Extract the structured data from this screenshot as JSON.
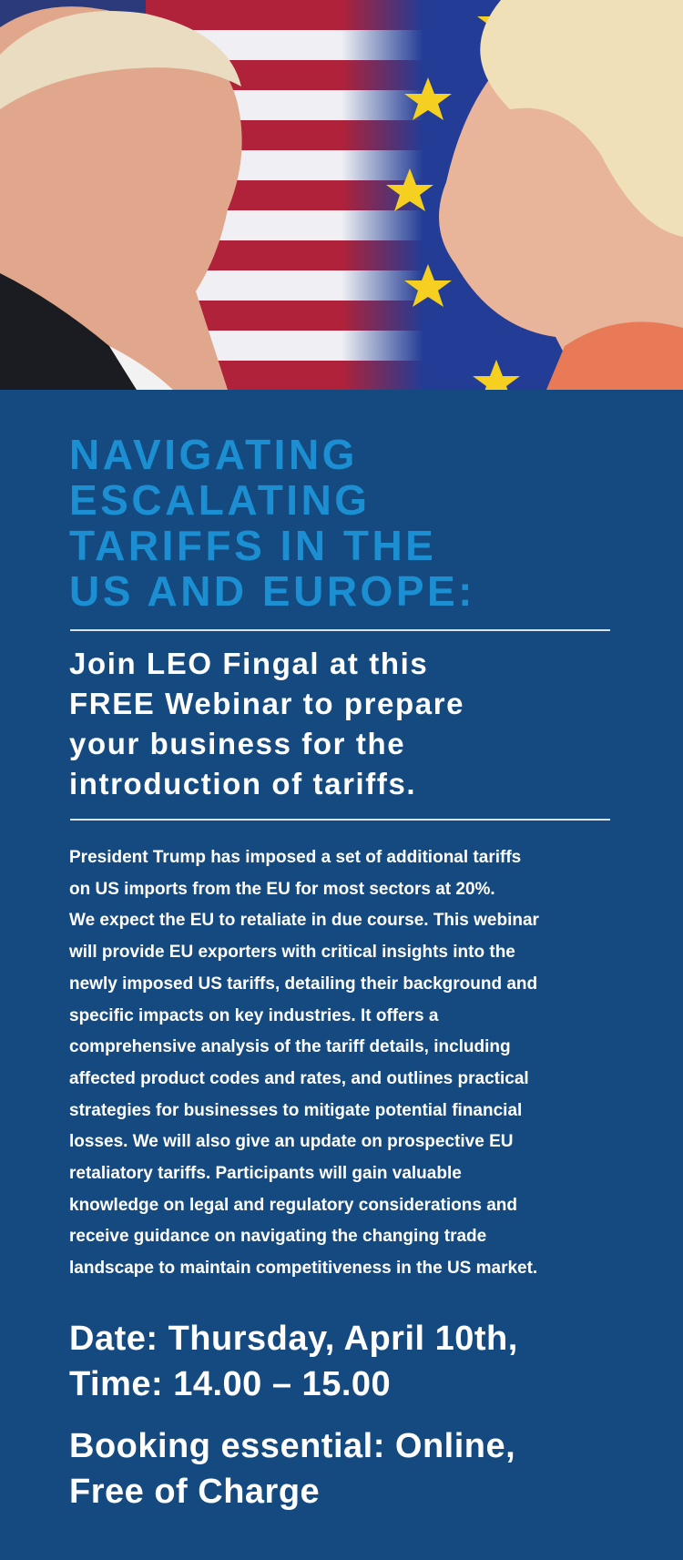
{
  "hero": {
    "image": "Donald Trump and Ursula von der Leyen facing each other in front of US and EU flags"
  },
  "title": [
    "NAVIGATING",
    "ESCALATING",
    "TARIFFS IN THE",
    "US AND EUROPE:"
  ],
  "subtitle": [
    "Join LEO Fingal at this",
    "FREE Webinar to prepare",
    "your business for the",
    "introduction of tariffs."
  ],
  "body": [
    "President Trump has imposed a set of additional tariffs",
    "on US imports from the EU for most sectors at 20%.",
    "We expect the EU to retaliate in due course. This webinar",
    "will provide EU exporters with critical insights into the",
    "newly imposed US tariffs, detailing their background and",
    "specific impacts on key industries. It offers a",
    "comprehensive analysis of the tariff details, including",
    "affected product codes and rates, and outlines practical",
    "strategies for businesses to mitigate potential financial",
    "losses. We will also give an update on prospective EU",
    "retaliatory tariffs. Participants will gain valuable",
    "knowledge on legal and regulatory considerations and",
    "receive guidance on navigating the changing trade",
    "landscape to maintain competitiveness in the US market."
  ],
  "date_lines": [
    "Date: Thursday, April 10th,",
    "Time: 14.00 – 15.00"
  ],
  "booking_lines": [
    "Booking essential: Online,",
    "Free of Charge"
  ],
  "colors": {
    "background": "#154a80",
    "title": "#1b8fd2",
    "text": "#ffffff"
  }
}
